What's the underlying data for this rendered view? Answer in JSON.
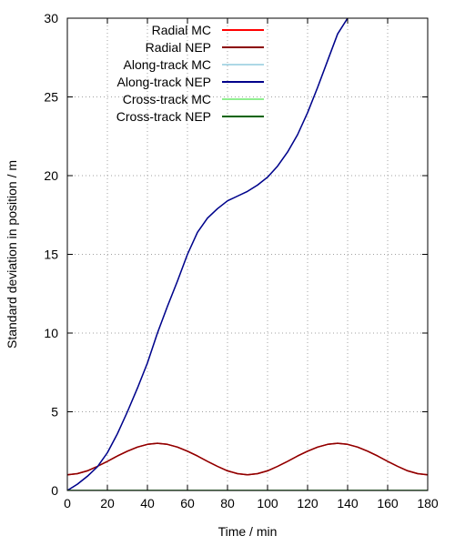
{
  "chart_data": {
    "type": "line",
    "xlabel": "Time / min",
    "ylabel": "Standard deviation in position / m",
    "xlim": [
      0,
      180
    ],
    "ylim": [
      0,
      30
    ],
    "xticks": [
      0,
      20,
      40,
      60,
      80,
      100,
      120,
      140,
      160,
      180
    ],
    "yticks": [
      0,
      5,
      10,
      15,
      20,
      25,
      30
    ],
    "grid": true,
    "legend_position": "top-left",
    "series": [
      {
        "name": "Radial MC",
        "color": "#ff0000",
        "x": [
          0,
          5,
          10,
          15,
          20,
          25,
          30,
          35,
          40,
          45,
          50,
          55,
          60,
          65,
          70,
          75,
          80,
          85,
          90,
          95,
          100,
          105,
          110,
          115,
          120,
          125,
          130,
          135,
          140,
          145,
          150,
          155,
          160,
          165,
          170,
          175,
          180
        ],
        "y": [
          1.0,
          1.07,
          1.25,
          1.53,
          1.85,
          2.19,
          2.5,
          2.76,
          2.93,
          3.0,
          2.93,
          2.76,
          2.5,
          2.19,
          1.85,
          1.53,
          1.25,
          1.07,
          1.0,
          1.07,
          1.25,
          1.53,
          1.85,
          2.19,
          2.5,
          2.76,
          2.93,
          3.0,
          2.93,
          2.76,
          2.5,
          2.19,
          1.85,
          1.53,
          1.25,
          1.07,
          1.0
        ]
      },
      {
        "name": "Radial NEP",
        "color": "#8b0000",
        "x": [
          0,
          5,
          10,
          15,
          20,
          25,
          30,
          35,
          40,
          45,
          50,
          55,
          60,
          65,
          70,
          75,
          80,
          85,
          90,
          95,
          100,
          105,
          110,
          115,
          120,
          125,
          130,
          135,
          140,
          145,
          150,
          155,
          160,
          165,
          170,
          175,
          180
        ],
        "y": [
          1.0,
          1.07,
          1.25,
          1.53,
          1.85,
          2.19,
          2.5,
          2.76,
          2.93,
          3.0,
          2.93,
          2.76,
          2.5,
          2.19,
          1.85,
          1.53,
          1.25,
          1.07,
          1.0,
          1.07,
          1.25,
          1.53,
          1.85,
          2.19,
          2.5,
          2.76,
          2.93,
          3.0,
          2.93,
          2.76,
          2.5,
          2.19,
          1.85,
          1.53,
          1.25,
          1.07,
          1.0
        ]
      },
      {
        "name": "Along-track MC",
        "color": "#add8e6",
        "x": [
          0,
          5,
          10,
          15,
          20,
          25,
          30,
          35,
          40,
          45,
          50,
          55,
          60,
          65,
          70,
          75,
          80,
          85,
          90,
          95,
          100,
          105,
          110,
          115,
          120,
          125,
          130,
          135,
          140
        ],
        "y": [
          0,
          0.4,
          0.9,
          1.5,
          2.4,
          3.6,
          5.0,
          6.5,
          8.1,
          10.0,
          11.7,
          13.3,
          15.0,
          16.4,
          17.3,
          17.9,
          18.4,
          18.7,
          19.0,
          19.4,
          19.9,
          20.6,
          21.5,
          22.6,
          24.0,
          25.6,
          27.3,
          29.0,
          30.0
        ]
      },
      {
        "name": "Along-track NEP",
        "color": "#00008b",
        "x": [
          0,
          5,
          10,
          15,
          20,
          25,
          30,
          35,
          40,
          45,
          50,
          55,
          60,
          65,
          70,
          75,
          80,
          85,
          90,
          95,
          100,
          105,
          110,
          115,
          120,
          125,
          130,
          135,
          140
        ],
        "y": [
          0,
          0.4,
          0.9,
          1.5,
          2.4,
          3.6,
          5.0,
          6.5,
          8.1,
          10.0,
          11.7,
          13.3,
          15.0,
          16.4,
          17.3,
          17.9,
          18.4,
          18.7,
          19.0,
          19.4,
          19.9,
          20.6,
          21.5,
          22.6,
          24.0,
          25.6,
          27.3,
          29.0,
          30.0
        ]
      },
      {
        "name": "Cross-track MC",
        "color": "#90ee90",
        "x": [
          0,
          45,
          90,
          135,
          180
        ],
        "y": [
          0,
          0,
          0,
          0,
          0
        ]
      },
      {
        "name": "Cross-track NEP",
        "color": "#006400",
        "x": [
          0,
          45,
          90,
          135,
          180
        ],
        "y": [
          0,
          0,
          0,
          0,
          0
        ]
      }
    ]
  }
}
